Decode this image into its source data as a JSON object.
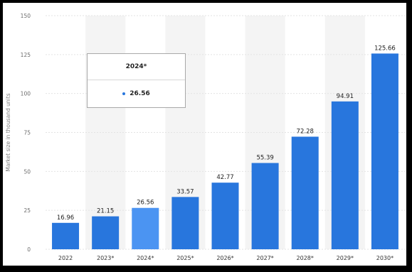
{
  "chart_data": {
    "type": "bar",
    "categories": [
      "2022",
      "2023*",
      "2024*",
      "2025*",
      "2026*",
      "2027*",
      "2028*",
      "2029*",
      "2030*"
    ],
    "values": [
      16.96,
      21.15,
      26.56,
      33.57,
      42.77,
      55.39,
      72.28,
      94.91,
      125.66
    ],
    "value_labels": [
      "16.96",
      "21.15",
      "26.56",
      "33.57",
      "42.77",
      "55.39",
      "72.28",
      "94.91",
      "125.66"
    ],
    "ylabel": "Market size in thousand units",
    "ylim": [
      0,
      150
    ],
    "yticks": [
      0,
      25,
      50,
      75,
      100,
      125,
      150
    ],
    "grid": true,
    "highlighted_category": "2024*",
    "colors": {
      "bar": "#2876dd",
      "bar_highlight": "#4b94f2",
      "band": "#f4f4f4",
      "grid": "#e3e3e3"
    },
    "tooltip": {
      "title": "2024*",
      "value": "26.56"
    }
  }
}
